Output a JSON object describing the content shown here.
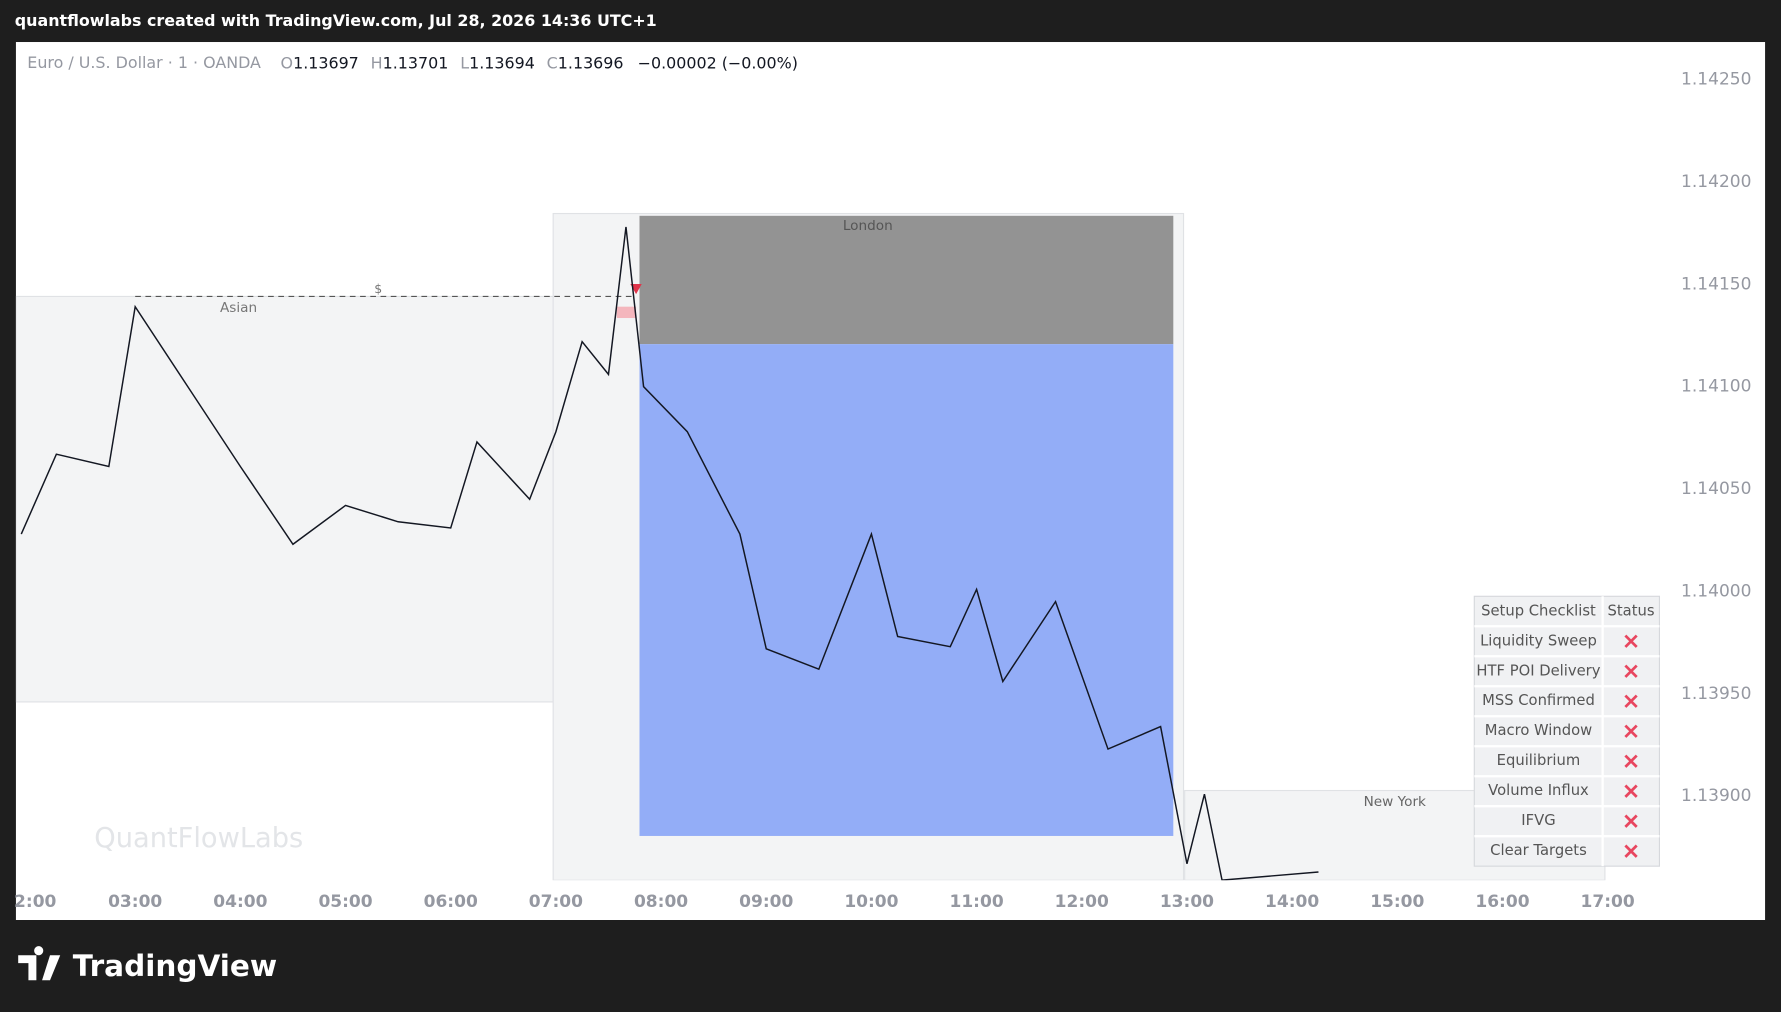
{
  "header": {
    "title": "quantflowlabs created with TradingView.com, Jul 28, 2026 14:36 UTC+1"
  },
  "legend": {
    "symbol": "Euro / U.S. Dollar · 1 · OANDA",
    "open_label": "O",
    "open": 1.13697,
    "high_label": "H",
    "high": 1.13701,
    "low_label": "L",
    "low": 1.13694,
    "close_label": "C",
    "close": 1.13696,
    "change": "−0.00002 (−0.00%)"
  },
  "price_chart": {
    "yticks": [
      {
        "value": 1.1425,
        "label": "1.14250"
      },
      {
        "value": 1.142,
        "label": "1.14200"
      },
      {
        "value": 1.1415,
        "label": "1.14150"
      },
      {
        "value": 1.141,
        "label": "1.14100"
      },
      {
        "value": 1.1405,
        "label": "1.14050"
      },
      {
        "value": 1.14,
        "label": "1.14000"
      },
      {
        "value": 1.1395,
        "label": "1.13950"
      },
      {
        "value": 1.139,
        "label": "1.13900"
      }
    ],
    "xticks": [
      "2:00",
      "03:00",
      "04:00",
      "05:00",
      "06:00",
      "07:00",
      "08:00",
      "09:00",
      "10:00",
      "11:00",
      "12:00",
      "13:00",
      "14:00",
      "15:00",
      "16:00",
      "17:00"
    ],
    "price_path": {
      "x": [
        "01:55",
        "02:15",
        "02:45",
        "03:00",
        "03:30",
        "04:00",
        "04:30",
        "05:00",
        "05:30",
        "06:00",
        "06:15",
        "06:45",
        "07:00",
        "07:15",
        "07:30",
        "07:40",
        "07:50",
        "08:15",
        "08:45",
        "09:00",
        "09:30",
        "10:00",
        "10:15",
        "10:45",
        "11:00",
        "11:15",
        "11:45",
        "12:15",
        "12:45",
        "13:00",
        "13:10",
        "13:20",
        "14:15"
      ],
      "values": [
        1.14028,
        1.14067,
        1.14061,
        1.14139,
        1.141,
        1.14061,
        1.14023,
        1.14042,
        1.14034,
        1.14031,
        1.14073,
        1.14045,
        1.14078,
        1.14122,
        1.14106,
        1.14178,
        1.141,
        1.14078,
        1.14028,
        1.13972,
        1.13962,
        1.14028,
        1.13978,
        1.13973,
        1.14001,
        1.13956,
        1.13995,
        1.13923,
        1.13934,
        1.13867,
        1.13901,
        1.13859,
        1.13863
      ]
    },
    "sessions": [
      "Asian",
      "London",
      "New York"
    ],
    "sweep_label": "$",
    "watermark": "QuantFlowLabs"
  },
  "checklist": {
    "header": [
      "Setup Checklist",
      "Status"
    ],
    "rows": [
      "Liquidity Sweep",
      "HTF POI Delivery",
      "MSS Confirmed",
      "Macro Window",
      "Equilibrium",
      "Volume Influx",
      "IFVG",
      "Clear Targets"
    ]
  },
  "footer": {
    "brand": "TradingView"
  }
}
